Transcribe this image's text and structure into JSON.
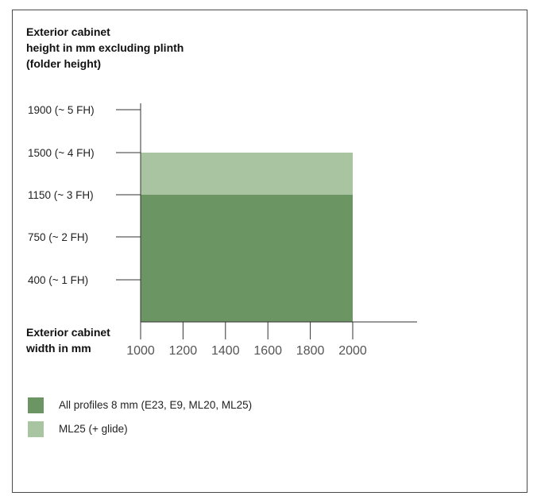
{
  "chart_data": {
    "type": "area",
    "ylabel": "Exterior cabinet\nheight in mm excluding plinth\n(folder height)",
    "xlabel": "Exterior cabinet\nwidth in mm",
    "x_ticks": [
      1000,
      1200,
      1400,
      1600,
      1800,
      2000
    ],
    "x_tick_labels": [
      "1000",
      "1200",
      "1400",
      "1600",
      "1800",
      "2000"
    ],
    "y_ticks": [
      400,
      750,
      1150,
      1500,
      1900
    ],
    "y_tick_labels": [
      "400 (~ 1 FH)",
      "750 (~ 2 FH)",
      "1150 (~ 3 FH)",
      "1500 (~ 4 FH)",
      "1900 (~ 5 FH)"
    ],
    "series": [
      {
        "name": "All profiles 8 mm (E23, E9, ML20, ML25)",
        "color": "#6b9563",
        "x_range": [
          1000,
          2000
        ],
        "y_range": [
          0,
          1150
        ]
      },
      {
        "name": "ML25 (+ glide)",
        "color": "#a9c4a0",
        "x_range": [
          1000,
          2000
        ],
        "y_range": [
          1150,
          1500
        ]
      }
    ],
    "grid": false,
    "legend_position": "bottom-left"
  }
}
